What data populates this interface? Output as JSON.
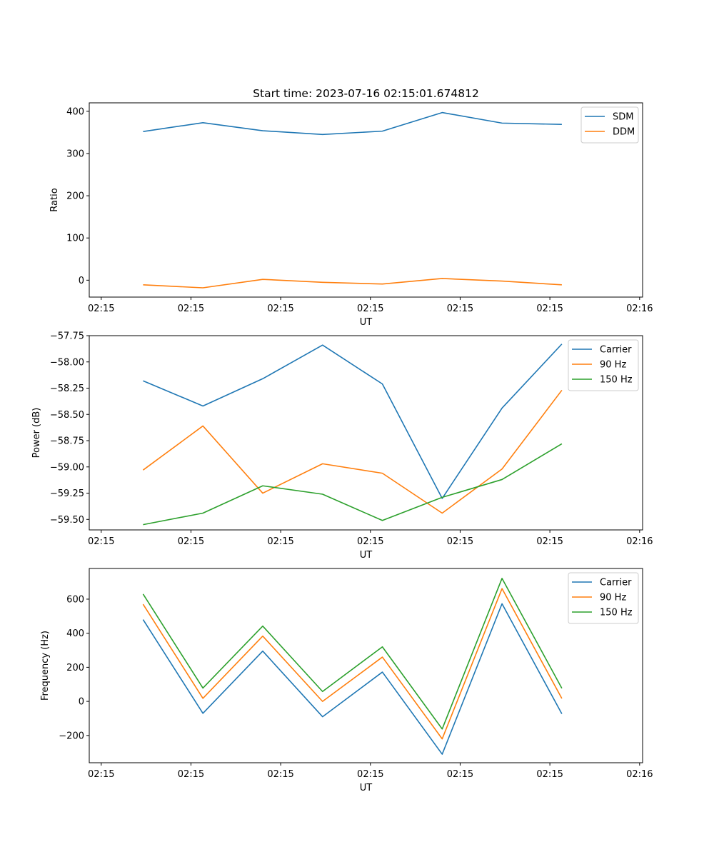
{
  "chart_data": [
    {
      "type": "line",
      "title": "Start time: 2023-07-16 02:15:01.674812",
      "xlabel": "UT",
      "ylabel": "Ratio",
      "xlim": [
        -0.9,
        8.35
      ],
      "ylim": [
        -40,
        420
      ],
      "xticks": [
        {
          "pos": -0.7,
          "label": "02:15"
        },
        {
          "pos": 0.8,
          "label": "02:15"
        },
        {
          "pos": 2.3,
          "label": "02:15"
        },
        {
          "pos": 3.8,
          "label": "02:15"
        },
        {
          "pos": 5.3,
          "label": "02:15"
        },
        {
          "pos": 6.8,
          "label": "02:15"
        },
        {
          "pos": 8.3,
          "label": "02:16"
        }
      ],
      "yticks": [
        0,
        100,
        200,
        300,
        400
      ],
      "ytick_labels": [
        "0",
        "100",
        "200",
        "300",
        "400"
      ],
      "x": [
        0,
        1,
        2,
        3,
        4,
        5,
        6,
        7
      ],
      "series": [
        {
          "name": "SDM",
          "color": "#1f77b4",
          "values": [
            352,
            373,
            354,
            345,
            353,
            397,
            372,
            369
          ]
        },
        {
          "name": "DDM",
          "color": "#ff7f0e",
          "values": [
            -11,
            -18,
            2,
            -5,
            -9,
            4,
            -2,
            -11
          ]
        }
      ],
      "legend": "top-right"
    },
    {
      "type": "line",
      "xlabel": "UT",
      "ylabel": "Power (dB)",
      "xlim": [
        -0.9,
        8.35
      ],
      "ylim": [
        -59.6,
        -57.75
      ],
      "xticks": [
        {
          "pos": -0.7,
          "label": "02:15"
        },
        {
          "pos": 0.8,
          "label": "02:15"
        },
        {
          "pos": 2.3,
          "label": "02:15"
        },
        {
          "pos": 3.8,
          "label": "02:15"
        },
        {
          "pos": 5.3,
          "label": "02:15"
        },
        {
          "pos": 6.8,
          "label": "02:15"
        },
        {
          "pos": 8.3,
          "label": "02:16"
        }
      ],
      "yticks": [
        -59.5,
        -59.25,
        -59.0,
        -58.75,
        -58.5,
        -58.25,
        -58.0,
        -57.75
      ],
      "ytick_labels": [
        "−59.50",
        "−59.25",
        "−59.00",
        "−58.75",
        "−58.50",
        "−58.25",
        "−58.00",
        "−57.75"
      ],
      "x": [
        0,
        1,
        2,
        3,
        4,
        5,
        6,
        7
      ],
      "series": [
        {
          "name": "Carrier",
          "color": "#1f77b4",
          "values": [
            -58.18,
            -58.42,
            -58.16,
            -57.84,
            -58.21,
            -59.3,
            -58.44,
            -57.83
          ]
        },
        {
          "name": "90 Hz",
          "color": "#ff7f0e",
          "values": [
            -59.03,
            -58.61,
            -59.25,
            -58.97,
            -59.06,
            -59.44,
            -59.02,
            -58.27
          ]
        },
        {
          "name": "150 Hz",
          "color": "#2ca02c",
          "values": [
            -59.55,
            -59.44,
            -59.18,
            -59.26,
            -59.51,
            -59.29,
            -59.12,
            -58.78
          ]
        }
      ],
      "legend": "top-right"
    },
    {
      "type": "line",
      "xlabel": "UT",
      "ylabel": "Frequency (Hz)",
      "xlim": [
        -0.9,
        8.35
      ],
      "ylim": [
        -360,
        780
      ],
      "xticks": [
        {
          "pos": -0.7,
          "label": "02:15"
        },
        {
          "pos": 0.8,
          "label": "02:15"
        },
        {
          "pos": 2.3,
          "label": "02:15"
        },
        {
          "pos": 3.8,
          "label": "02:15"
        },
        {
          "pos": 5.3,
          "label": "02:15"
        },
        {
          "pos": 6.8,
          "label": "02:15"
        },
        {
          "pos": 8.3,
          "label": "02:16"
        }
      ],
      "yticks": [
        -200,
        0,
        200,
        400,
        600
      ],
      "ytick_labels": [
        "−200",
        "0",
        "200",
        "400",
        "600"
      ],
      "x": [
        0,
        1,
        2,
        3,
        4,
        5,
        6,
        7
      ],
      "series": [
        {
          "name": "Carrier",
          "color": "#1f77b4",
          "values": [
            480,
            -70,
            295,
            -90,
            172,
            -310,
            573,
            -73
          ]
        },
        {
          "name": "90 Hz",
          "color": "#ff7f0e",
          "values": [
            570,
            18,
            383,
            0,
            260,
            -220,
            662,
            17
          ]
        },
        {
          "name": "150 Hz",
          "color": "#2ca02c",
          "values": [
            630,
            78,
            442,
            58,
            320,
            -162,
            722,
            77
          ]
        }
      ],
      "legend": "top-right"
    }
  ]
}
